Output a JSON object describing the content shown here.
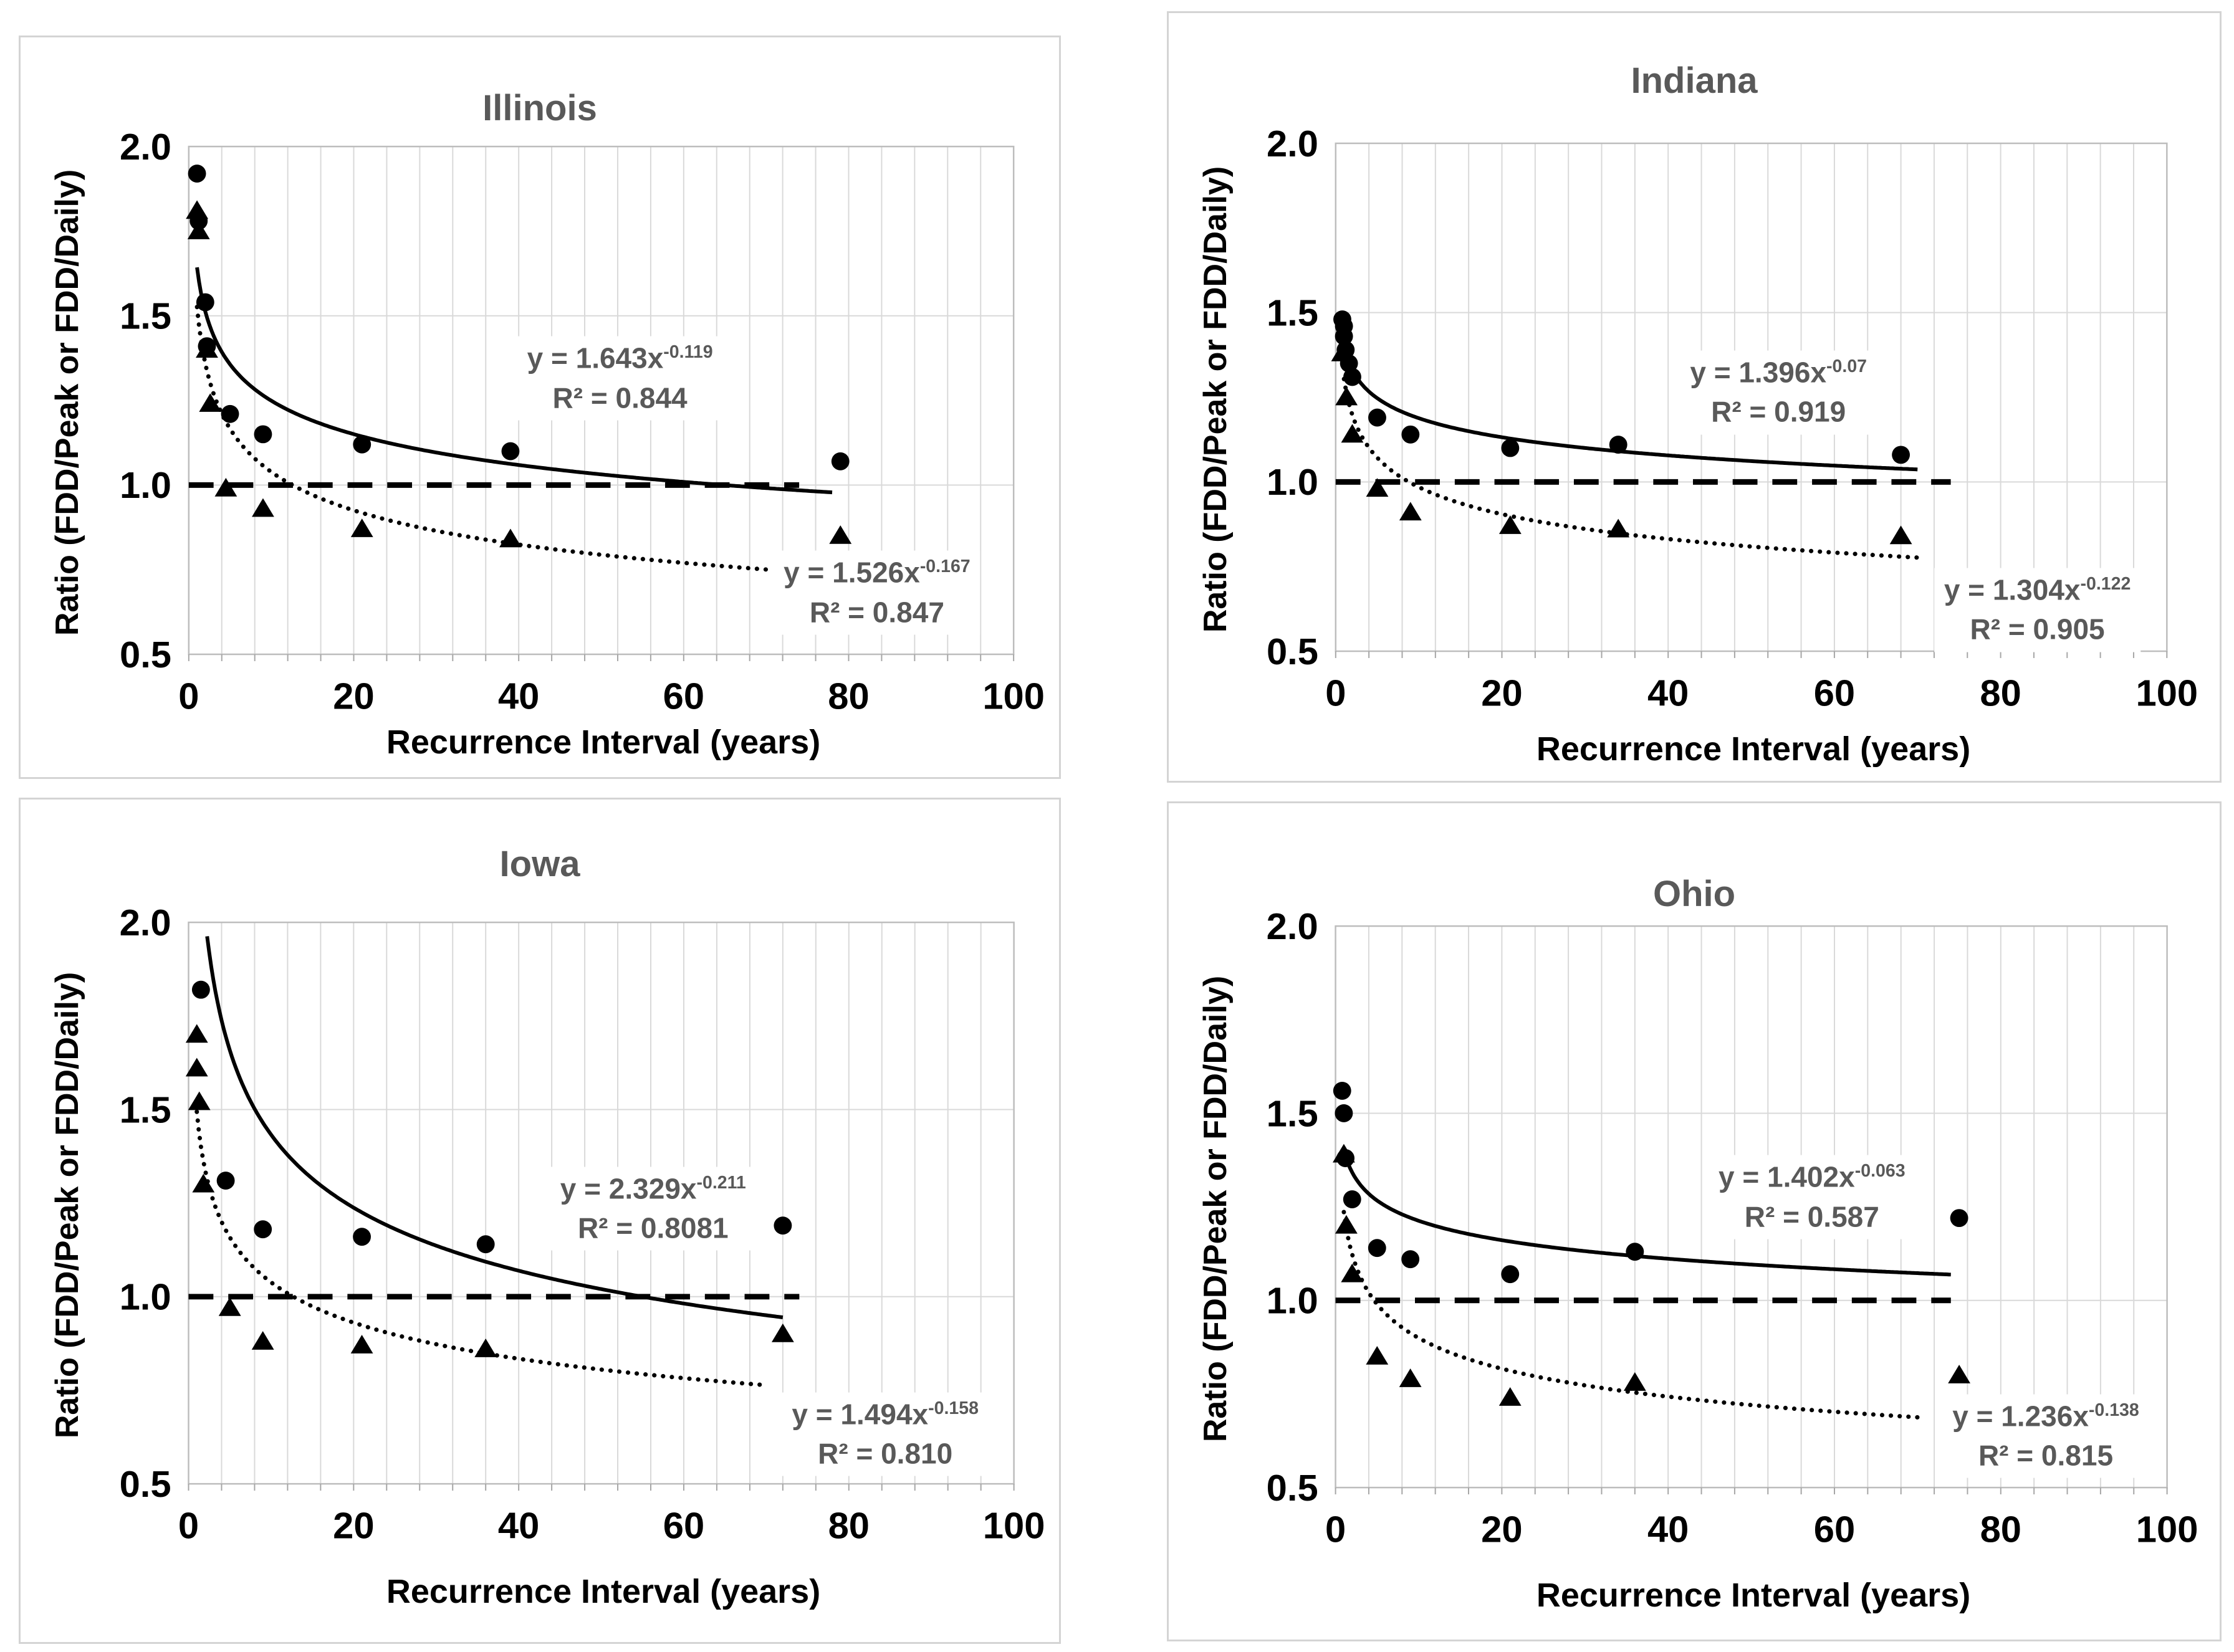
{
  "colors": {
    "data_series": "#000000",
    "gridline": "#d9d9d9",
    "plot_border": "#bdbdbd",
    "tick_mark": "#a6a6a6",
    "title_text": "#595959",
    "equation_text": "#595959",
    "axis_text": "#000000"
  },
  "chart_data": [
    {
      "type": "scatter",
      "title": "Illinois",
      "xlabel": "Recurrence Interval (years)",
      "ylabel": "Ratio (FDD/Peak or FDD/Daily)",
      "xlim": [
        0,
        100
      ],
      "ylim": [
        0.5,
        2.0
      ],
      "x_ticks": [
        0,
        20,
        40,
        60,
        80,
        100
      ],
      "y_ticks": [
        2.0,
        1.5,
        1.0,
        0.5
      ],
      "x_minor_grid_step": 4,
      "grid": "on",
      "legend": "none",
      "reference_line": {
        "y": 1.0,
        "style": "dashed",
        "x_range": [
          0,
          74
        ]
      },
      "series": [
        {
          "name": "circle markers",
          "marker": "circle",
          "points": [
            [
              1,
              1.92
            ],
            [
              1.2,
              1.78
            ],
            [
              2,
              1.54
            ],
            [
              2.2,
              1.41
            ],
            [
              5,
              1.21
            ],
            [
              9,
              1.15
            ],
            [
              21,
              1.12
            ],
            [
              39,
              1.1
            ],
            [
              79,
              1.07
            ]
          ]
        },
        {
          "name": "triangle markers",
          "marker": "triangle",
          "points": [
            [
              1,
              1.81
            ],
            [
              1.2,
              1.75
            ],
            [
              2.2,
              1.4
            ],
            [
              2.6,
              1.24
            ],
            [
              4.5,
              0.99
            ],
            [
              9,
              0.93
            ],
            [
              21,
              0.87
            ],
            [
              39,
              0.84
            ],
            [
              79,
              0.85
            ]
          ]
        }
      ],
      "trendlines": [
        {
          "series": "circle markers",
          "style": "solid",
          "coef": 1.643,
          "exp": -0.119,
          "x_range": [
            1,
            78
          ],
          "equation": "y = 1.643x",
          "exponent_text": "-0.119",
          "r2": "R² = 0.844",
          "label_anchor": [
            52,
            1.32
          ]
        },
        {
          "series": "triangle markers",
          "style": "dotted",
          "coef": 1.526,
          "exp": -0.167,
          "x_range": [
            1,
            70
          ],
          "equation": "y = 1.526x",
          "exponent_text": "-0.167",
          "r2": "R² = 0.847",
          "label_anchor": [
            83,
            0.69
          ]
        }
      ]
    },
    {
      "type": "scatter",
      "title": "Indiana",
      "xlabel": "Recurrence Interval (years)",
      "ylabel": "Ratio (FDD/Peak or FDD/Daily)",
      "xlim": [
        0,
        100
      ],
      "ylim": [
        0.5,
        2.0
      ],
      "x_ticks": [
        0,
        20,
        40,
        60,
        80,
        100
      ],
      "y_ticks": [
        2.0,
        1.5,
        1.0,
        0.5
      ],
      "x_minor_grid_step": 4,
      "grid": "on",
      "legend": "none",
      "reference_line": {
        "y": 1.0,
        "style": "dashed",
        "x_range": [
          0,
          74
        ]
      },
      "series": [
        {
          "name": "circle markers",
          "marker": "circle",
          "points": [
            [
              0.8,
              1.48
            ],
            [
              1,
              1.46
            ],
            [
              1,
              1.43
            ],
            [
              1.2,
              1.39
            ],
            [
              1.6,
              1.35
            ],
            [
              2,
              1.31
            ],
            [
              5,
              1.19
            ],
            [
              9,
              1.14
            ],
            [
              21,
              1.1
            ],
            [
              34,
              1.11
            ],
            [
              68,
              1.08
            ]
          ]
        },
        {
          "name": "triangle markers",
          "marker": "triangle",
          "points": [
            [
              0.8,
              1.38
            ],
            [
              1.3,
              1.25
            ],
            [
              2,
              1.14
            ],
            [
              5,
              0.98
            ],
            [
              9,
              0.91
            ],
            [
              21,
              0.87
            ],
            [
              34,
              0.86
            ],
            [
              68,
              0.84
            ]
          ]
        }
      ],
      "trendlines": [
        {
          "series": "circle markers",
          "style": "solid",
          "coef": 1.396,
          "exp": -0.07,
          "x_range": [
            1,
            70
          ],
          "equation": "y = 1.396x",
          "exponent_text": "-0.07",
          "r2": "R² = 0.919",
          "label_anchor": [
            53,
            1.27
          ]
        },
        {
          "series": "triangle markers",
          "style": "dotted",
          "coef": 1.304,
          "exp": -0.122,
          "x_range": [
            1,
            70
          ],
          "equation": "y = 1.304x",
          "exponent_text": "-0.122",
          "r2": "R² = 0.905",
          "label_anchor": [
            84,
            0.63
          ]
        }
      ]
    },
    {
      "type": "scatter",
      "title": "Iowa",
      "xlabel": "Recurrence Interval (years)",
      "ylabel": "Ratio (FDD/Peak or FDD/Daily)",
      "xlim": [
        0,
        100
      ],
      "ylim": [
        0.5,
        2.0
      ],
      "x_ticks": [
        0,
        20,
        40,
        60,
        80,
        100
      ],
      "y_ticks": [
        2.0,
        1.5,
        1.0,
        0.5
      ],
      "x_minor_grid_step": 4,
      "grid": "on",
      "legend": "none",
      "reference_line": {
        "y": 1.0,
        "style": "dashed",
        "x_range": [
          0,
          74
        ]
      },
      "series": [
        {
          "name": "circle markers",
          "marker": "circle",
          "points": [
            [
              1.5,
              1.82
            ],
            [
              4.5,
              1.31
            ],
            [
              9,
              1.18
            ],
            [
              21,
              1.16
            ],
            [
              36,
              1.14
            ],
            [
              72,
              1.19
            ]
          ]
        },
        {
          "name": "triangle markers",
          "marker": "triangle",
          "points": [
            [
              1,
              1.7
            ],
            [
              1,
              1.61
            ],
            [
              1.3,
              1.52
            ],
            [
              1.8,
              1.3
            ],
            [
              5,
              0.97
            ],
            [
              9,
              0.88
            ],
            [
              21,
              0.87
            ],
            [
              36,
              0.86
            ],
            [
              72,
              0.9
            ]
          ]
        }
      ],
      "trendlines": [
        {
          "series": "circle markers",
          "style": "solid",
          "coef": 2.329,
          "exp": -0.211,
          "x_range": [
            1,
            72
          ],
          "equation": "y = 2.329x",
          "exponent_text": "-0.211",
          "r2": "R² = 0.8081",
          "label_anchor": [
            56,
            1.24
          ]
        },
        {
          "series": "triangle markers",
          "style": "dotted",
          "coef": 1.494,
          "exp": -0.158,
          "x_range": [
            1,
            70
          ],
          "equation": "y = 1.494x",
          "exponent_text": "-0.158",
          "r2": "R² = 0.810",
          "label_anchor": [
            84,
            0.64
          ]
        }
      ]
    },
    {
      "type": "scatter",
      "title": "Ohio",
      "xlabel": "Recurrence Interval (years)",
      "ylabel": "Ratio (FDD/Peak or FDD/Daily)",
      "xlim": [
        0,
        100
      ],
      "ylim": [
        0.5,
        2.0
      ],
      "x_ticks": [
        0,
        20,
        40,
        60,
        80,
        100
      ],
      "y_ticks": [
        2.0,
        1.5,
        1.0,
        0.5
      ],
      "x_minor_grid_step": 4,
      "grid": "on",
      "legend": "none",
      "reference_line": {
        "y": 1.0,
        "style": "dashed",
        "x_range": [
          0,
          74
        ]
      },
      "series": [
        {
          "name": "circle markers",
          "marker": "circle",
          "points": [
            [
              0.8,
              1.56
            ],
            [
              1,
              1.5
            ],
            [
              1.2,
              1.38
            ],
            [
              2,
              1.27
            ],
            [
              5,
              1.14
            ],
            [
              9,
              1.11
            ],
            [
              21,
              1.07
            ],
            [
              36,
              1.13
            ],
            [
              75,
              1.22
            ]
          ]
        },
        {
          "name": "triangle markers",
          "marker": "triangle",
          "points": [
            [
              1,
              1.39
            ],
            [
              1.3,
              1.2
            ],
            [
              2,
              1.07
            ],
            [
              5,
              0.85
            ],
            [
              9,
              0.79
            ],
            [
              21,
              0.74
            ],
            [
              36,
              0.78
            ],
            [
              75,
              0.8
            ]
          ]
        }
      ],
      "trendlines": [
        {
          "series": "circle markers",
          "style": "solid",
          "coef": 1.402,
          "exp": -0.063,
          "x_range": [
            1,
            74
          ],
          "equation": "y = 1.402x",
          "exponent_text": "-0.063",
          "r2": "R² = 0.587",
          "label_anchor": [
            57,
            1.28
          ]
        },
        {
          "series": "triangle markers",
          "style": "dotted",
          "coef": 1.236,
          "exp": -0.138,
          "x_range": [
            1,
            70
          ],
          "equation": "y = 1.236x",
          "exponent_text": "-0.138",
          "r2": "R² = 0.815",
          "label_anchor": [
            85,
            0.645
          ]
        }
      ]
    }
  ]
}
